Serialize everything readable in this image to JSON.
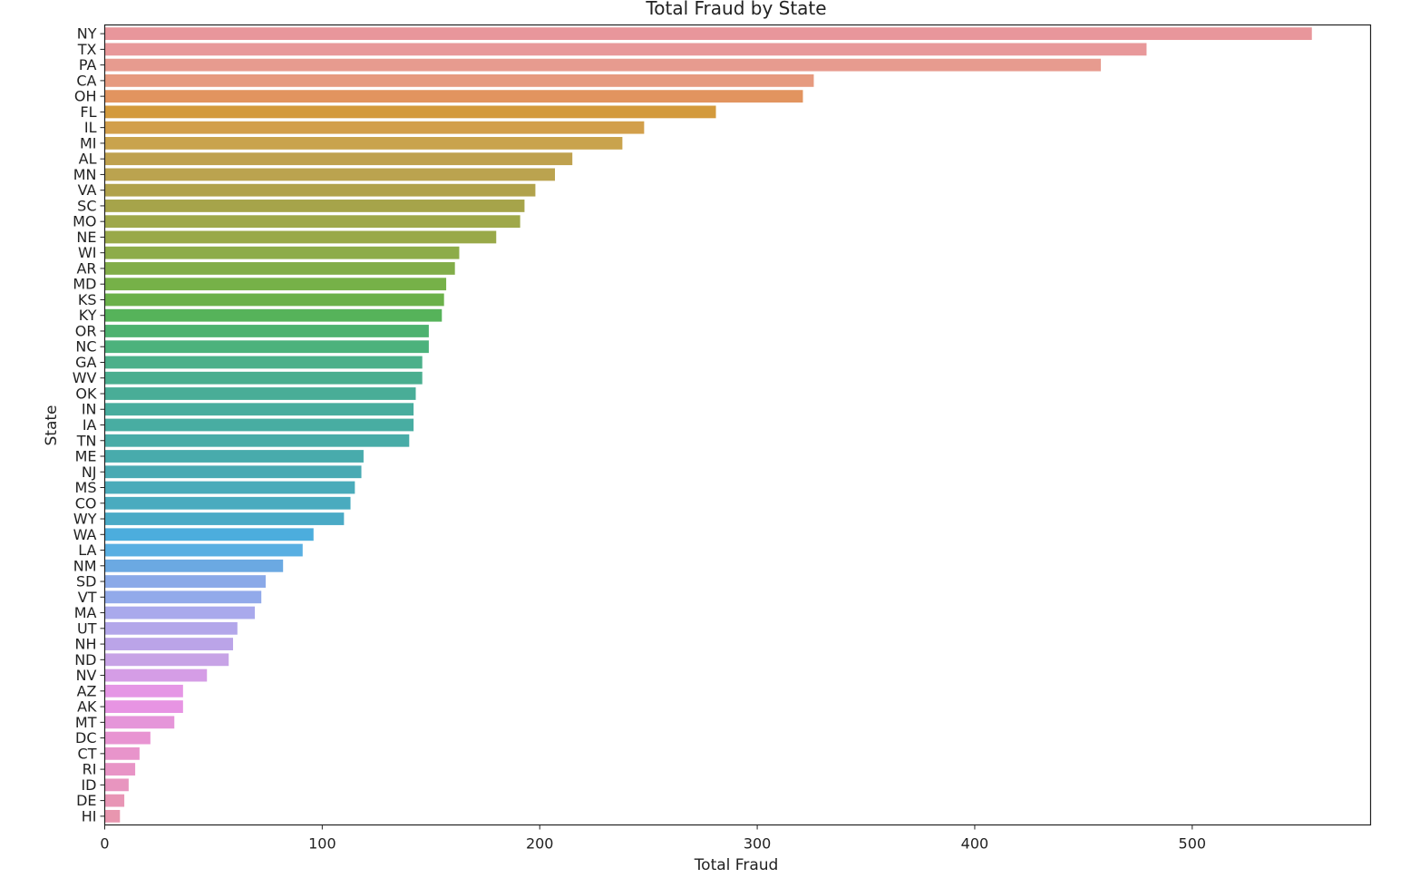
{
  "chart_data": {
    "type": "bar",
    "orientation": "horizontal",
    "title": "Total Fraud by State",
    "xlabel": "Total Fraud",
    "ylabel": "State",
    "xlim": [
      0,
      582
    ],
    "xticks": [
      0,
      100,
      200,
      300,
      400,
      500
    ],
    "grid": false,
    "categories": [
      "NY",
      "TX",
      "PA",
      "CA",
      "OH",
      "FL",
      "IL",
      "MI",
      "AL",
      "MN",
      "VA",
      "SC",
      "MO",
      "NE",
      "WI",
      "AR",
      "MD",
      "KS",
      "KY",
      "OR",
      "NC",
      "GA",
      "WV",
      "OK",
      "IN",
      "IA",
      "TN",
      "ME",
      "NJ",
      "MS",
      "CO",
      "WY",
      "WA",
      "LA",
      "NM",
      "SD",
      "VT",
      "MA",
      "UT",
      "NH",
      "ND",
      "NV",
      "AZ",
      "AK",
      "MT",
      "DC",
      "CT",
      "RI",
      "ID",
      "DE",
      "HI"
    ],
    "values": [
      555,
      479,
      458,
      326,
      321,
      281,
      248,
      238,
      215,
      207,
      198,
      193,
      191,
      180,
      163,
      161,
      157,
      156,
      155,
      149,
      149,
      146,
      146,
      143,
      142,
      142,
      140,
      119,
      118,
      115,
      113,
      110,
      96,
      91,
      82,
      74,
      72,
      69,
      61,
      59,
      57,
      47,
      36,
      36,
      32,
      21,
      16,
      14,
      11,
      9,
      7
    ],
    "colors": [
      "#e8969b",
      "#e8989a",
      "#e79b8f",
      "#e69a7f",
      "#e2945f",
      "#d39a3c",
      "#d29f4b",
      "#c9a34d",
      "#bfa14e",
      "#bba34f",
      "#b1a24c",
      "#a6a44a",
      "#9fa84a",
      "#99a949",
      "#8dac49",
      "#82ad49",
      "#76b148",
      "#6bb14a",
      "#56b35a",
      "#4db26f",
      "#4cb27c",
      "#4bb08a",
      "#4aae8f",
      "#49ad97",
      "#48ad9e",
      "#48ada2",
      "#48aca7",
      "#48abac",
      "#49aab3",
      "#4aabba",
      "#4aabbf",
      "#4aaac6",
      "#4caddd",
      "#58afe2",
      "#6ba9e2",
      "#8aa9e8",
      "#92aaea",
      "#a9a9ec",
      "#b3a7ea",
      "#bba4e8",
      "#c7a3e6",
      "#d59de6",
      "#e596e5",
      "#e794e3",
      "#e595d9",
      "#e894d2",
      "#e894cb",
      "#e894c6",
      "#e895bf",
      "#e895b5",
      "#e896af"
    ]
  }
}
